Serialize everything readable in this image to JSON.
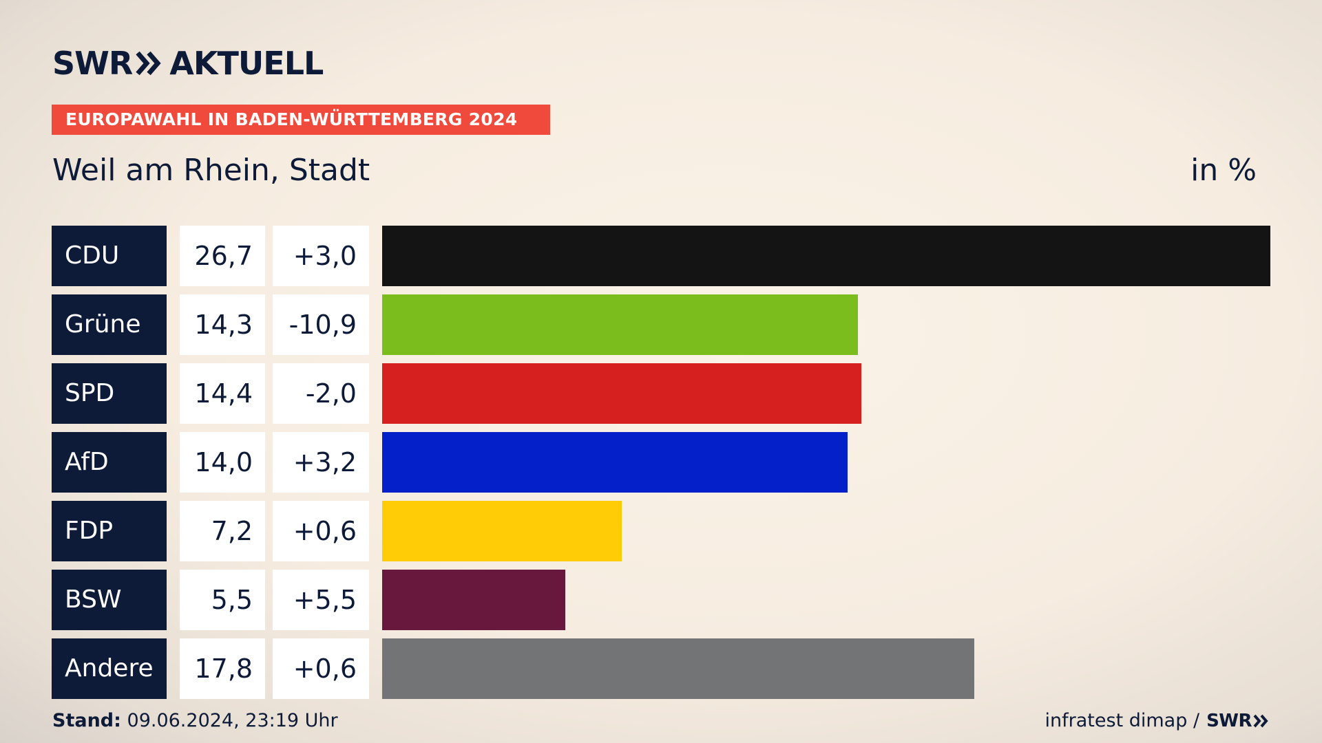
{
  "header": {
    "logo": {
      "text_left": "SWR",
      "text_right": "AKTUELL",
      "icon": "double-chevron-icon"
    },
    "banner": "EUROPAWAHL IN BADEN-WÜRTTEMBERG 2024",
    "region": "Weil am Rhein, Stadt",
    "unit": "in %"
  },
  "chart_data": {
    "type": "bar",
    "categories": [
      "CDU",
      "Grüne",
      "SPD",
      "AfD",
      "FDP",
      "BSW",
      "Andere"
    ],
    "values": [
      26.7,
      14.3,
      14.4,
      14.0,
      7.2,
      5.5,
      17.8
    ],
    "value_labels": [
      "26,7",
      "14,3",
      "14,4",
      "14,0",
      "7,2",
      "5,5",
      "17,8"
    ],
    "diff_labels": [
      "+3,0",
      "-10,9",
      "-2,0",
      "+3,2",
      "+0,6",
      "+5,5",
      "+0,6"
    ],
    "colors": [
      "#141414",
      "#7abd1c",
      "#d61f1f",
      "#0320c9",
      "#ffcc05",
      "#67183c",
      "#737476"
    ],
    "xlim": [
      0,
      26.7
    ],
    "grid": false,
    "legend": "none"
  },
  "footer": {
    "stand_label": "Stand:",
    "stand_value": "09.06.2024, 23:19 Uhr",
    "source": "infratest dimap /",
    "source_logo": "SWR"
  }
}
